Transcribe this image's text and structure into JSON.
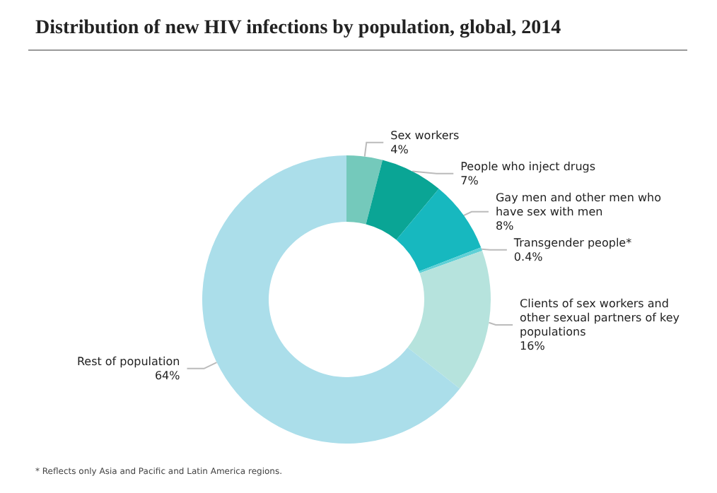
{
  "chart_data": {
    "type": "donut",
    "title": "Distribution of new HIV infections by population, global, 2014",
    "categories": [
      "Sex workers",
      "People who inject drugs",
      "Gay men and other men who have sex with men",
      "Transgender people*",
      "Clients of sex workers and other sexual partners of key populations",
      "Rest of population"
    ],
    "values": [
      4,
      7,
      8,
      0.4,
      16,
      64
    ],
    "value_labels": [
      "4%",
      "7%",
      "8%",
      "0.4%",
      "16%",
      "64%"
    ],
    "colors": [
      "#74c9bb",
      "#0aa595",
      "#17b8bf",
      "#5fd0d6",
      "#b6e3dd",
      "#abdeea"
    ],
    "annotations": [
      "* Reflects only Asia and Pacific and Latin America regions."
    ]
  }
}
